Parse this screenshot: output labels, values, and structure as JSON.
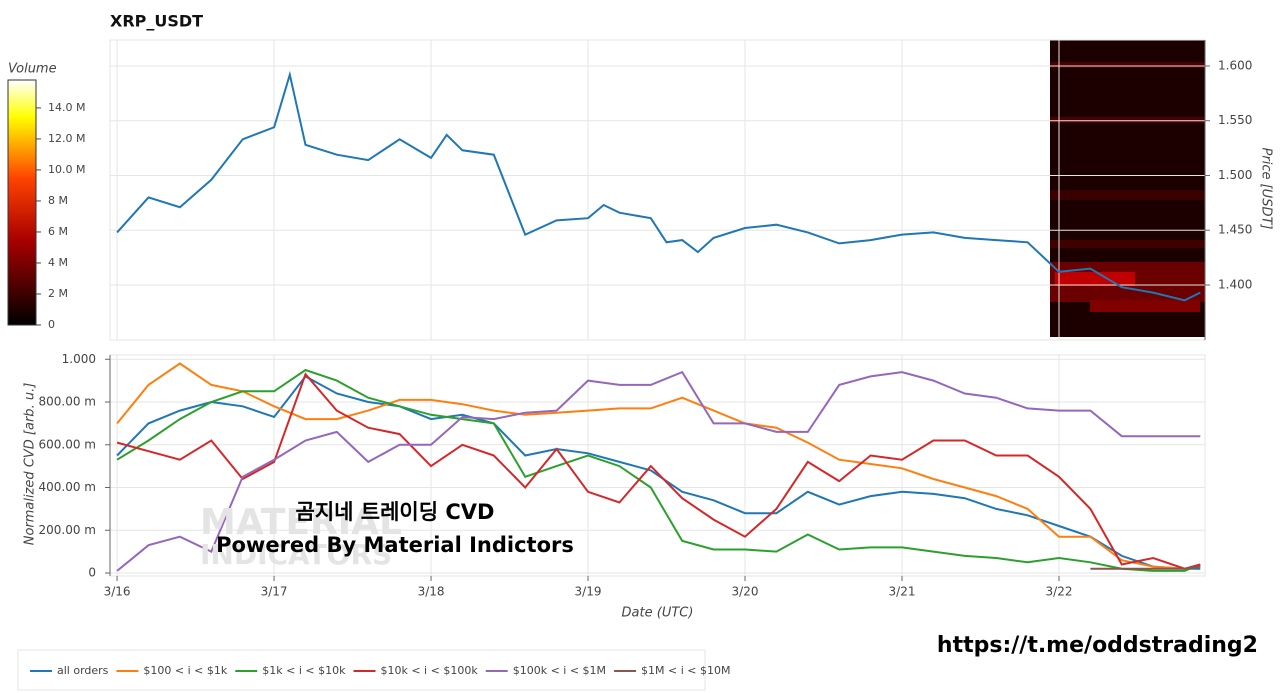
{
  "chart_data": [
    {
      "type": "line",
      "title": "XRP_USDT",
      "y_label": "Price [USDT]",
      "color": "#1f77b4",
      "x": [
        0,
        0.2,
        0.4,
        0.6,
        0.8,
        1.0,
        1.1,
        1.2,
        1.4,
        1.6,
        1.8,
        2.0,
        2.1,
        2.2,
        2.4,
        2.6,
        2.8,
        3.0,
        3.1,
        3.2,
        3.4,
        3.5,
        3.6,
        3.7,
        3.8,
        4.0,
        4.2,
        4.4,
        4.6,
        4.8,
        5.0,
        5.2,
        5.4,
        5.6,
        5.8,
        6.0,
        6.2,
        6.4,
        6.6,
        6.8,
        6.9
      ],
      "values": [
        1.448,
        1.48,
        1.471,
        1.496,
        1.533,
        1.544,
        1.592,
        1.528,
        1.519,
        1.514,
        1.533,
        1.516,
        1.537,
        1.523,
        1.519,
        1.446,
        1.459,
        1.461,
        1.473,
        1.466,
        1.461,
        1.439,
        1.441,
        1.43,
        1.443,
        1.452,
        1.455,
        1.448,
        1.438,
        1.441,
        1.446,
        1.448,
        1.443,
        1.441,
        1.439,
        1.412,
        1.415,
        1.398,
        1.393,
        1.386,
        1.393
      ],
      "xlim": [
        -0.045,
        6.93
      ],
      "xticks": [
        0,
        1,
        2,
        3,
        4,
        5,
        6
      ],
      "ylim": [
        1.3525,
        1.6237
      ],
      "yticks": [
        {
          "value": 1.4,
          "label": "1.400"
        },
        {
          "value": 1.45,
          "label": "1.450"
        },
        {
          "value": 1.5,
          "label": "1.500"
        },
        {
          "value": 1.55,
          "label": "1.550"
        },
        {
          "value": 1.6,
          "label": "1.600"
        }
      ],
      "grid": true,
      "colorbar": {
        "label": "Volume",
        "lim": [
          0,
          15800000
        ],
        "ticks": [
          {
            "value": 0,
            "label": "0"
          },
          {
            "value": 2000000,
            "label": "2 M"
          },
          {
            "value": 4000000,
            "label": "4 M"
          },
          {
            "value": 6000000,
            "label": "6 M"
          },
          {
            "value": 8000000,
            "label": "8 M"
          },
          {
            "value": 10000000,
            "label": "10.0 M"
          },
          {
            "value": 12000000,
            "label": "12.0 M"
          },
          {
            "value": 14000000,
            "label": "14.0 M"
          }
        ]
      }
    },
    {
      "type": "line",
      "x_label": "Date (UTC)",
      "y_label": "Normalized CVD [arb. u.]",
      "x": [
        0,
        0.2,
        0.4,
        0.6,
        0.8,
        1.0,
        1.2,
        1.4,
        1.6,
        1.8,
        2.0,
        2.2,
        2.4,
        2.6,
        2.8,
        3.0,
        3.2,
        3.4,
        3.6,
        3.8,
        4.0,
        4.2,
        4.4,
        4.6,
        4.8,
        5.0,
        5.2,
        5.4,
        5.6,
        5.8,
        6.0,
        6.2,
        6.4,
        6.6,
        6.8,
        6.9
      ],
      "xlim": [
        -0.045,
        6.93
      ],
      "xticks": [
        {
          "value": 0,
          "label": "3/16"
        },
        {
          "value": 1,
          "label": "3/17"
        },
        {
          "value": 2,
          "label": "3/18"
        },
        {
          "value": 3,
          "label": "3/19"
        },
        {
          "value": 4,
          "label": "3/20"
        },
        {
          "value": 5,
          "label": "3/21"
        },
        {
          "value": 6,
          "label": "3/22"
        }
      ],
      "ylim": [
        0,
        1.02
      ],
      "yticks": [
        {
          "value": 0,
          "label": "0"
        },
        {
          "value": 0.2,
          "label": "200.00 m"
        },
        {
          "value": 0.4,
          "label": "400.00 m"
        },
        {
          "value": 0.6,
          "label": "600.00 m"
        },
        {
          "value": 0.8,
          "label": "800.00 m"
        },
        {
          "value": 1,
          "label": "1.000"
        }
      ],
      "grid": true,
      "series": [
        {
          "name": "all orders",
          "color": "#1f77b4",
          "values": [
            0.55,
            0.7,
            0.76,
            0.8,
            0.78,
            0.73,
            0.92,
            0.84,
            0.8,
            0.78,
            0.72,
            0.74,
            0.7,
            0.55,
            0.58,
            0.56,
            0.52,
            0.48,
            0.38,
            0.34,
            0.28,
            0.28,
            0.38,
            0.32,
            0.36,
            0.38,
            0.37,
            0.35,
            0.3,
            0.27,
            0.22,
            0.17,
            0.08,
            0.03,
            0.02,
            0.02
          ]
        },
        {
          "name": "$100 < i < $1k",
          "color": "#ff7f0e",
          "values": [
            0.7,
            0.88,
            0.98,
            0.88,
            0.85,
            0.78,
            0.72,
            0.72,
            0.76,
            0.81,
            0.81,
            0.79,
            0.76,
            0.74,
            0.75,
            0.76,
            0.77,
            0.77,
            0.82,
            0.76,
            0.7,
            0.68,
            0.61,
            0.53,
            0.51,
            0.49,
            0.44,
            0.4,
            0.36,
            0.3,
            0.17,
            0.17,
            0.06,
            0.03,
            0.02,
            0.03
          ]
        },
        {
          "name": "$1k < i < $10k",
          "color": "#2ca02c",
          "values": [
            0.53,
            0.62,
            0.72,
            0.8,
            0.85,
            0.85,
            0.95,
            0.9,
            0.82,
            0.78,
            0.74,
            0.72,
            0.7,
            0.45,
            0.5,
            0.55,
            0.5,
            0.4,
            0.15,
            0.11,
            0.11,
            0.1,
            0.18,
            0.11,
            0.12,
            0.12,
            0.1,
            0.08,
            0.07,
            0.05,
            0.07,
            0.05,
            0.02,
            0.01,
            0.01,
            0.04
          ]
        },
        {
          "name": "$10k < i < $100k",
          "color": "#d62728",
          "values": [
            0.61,
            0.57,
            0.53,
            0.62,
            0.44,
            0.52,
            0.93,
            0.76,
            0.68,
            0.65,
            0.5,
            0.6,
            0.55,
            0.4,
            0.58,
            0.38,
            0.33,
            0.5,
            0.35,
            0.25,
            0.17,
            0.3,
            0.52,
            0.43,
            0.55,
            0.53,
            0.62,
            0.62,
            0.55,
            0.55,
            0.45,
            0.3,
            0.04,
            0.07,
            0.02,
            0.04
          ]
        },
        {
          "name": "$100k < i < $1M",
          "color": "#9467bd",
          "values": [
            0.01,
            0.13,
            0.17,
            0.1,
            0.45,
            0.53,
            0.62,
            0.66,
            0.52,
            0.6,
            0.6,
            0.73,
            0.72,
            0.75,
            0.76,
            0.9,
            0.88,
            0.88,
            0.94,
            0.7,
            0.7,
            0.66,
            0.66,
            0.88,
            0.92,
            0.94,
            0.9,
            0.84,
            0.82,
            0.77,
            0.76,
            0.76,
            0.64,
            0.64,
            0.64,
            0.64
          ]
        },
        {
          "name": "$1M < i < $10M",
          "color": "#8c564b",
          "values": [
            null,
            null,
            null,
            null,
            null,
            null,
            null,
            null,
            null,
            null,
            null,
            null,
            null,
            null,
            null,
            null,
            null,
            null,
            null,
            null,
            null,
            null,
            null,
            null,
            null,
            null,
            null,
            null,
            null,
            null,
            null,
            0.02,
            0.02,
            0.02,
            0.02,
            0.03
          ]
        }
      ],
      "watermark": [
        "MATERIAL",
        "INDICATORS"
      ],
      "annotations": [
        "곰지네 트레이딩 CVD",
        "Powered By Material Indictors"
      ]
    }
  ],
  "footer": "https://t.me/oddstrading2"
}
